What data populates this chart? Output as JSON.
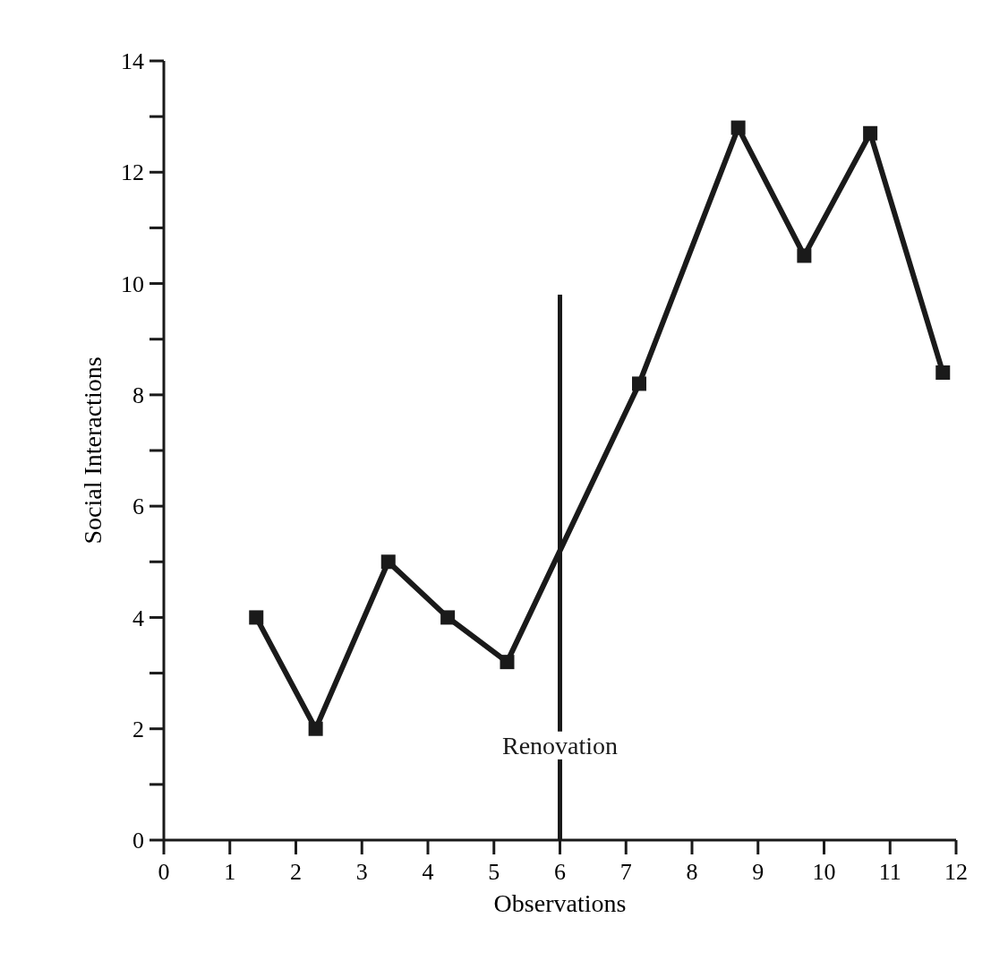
{
  "chart_data": {
    "type": "line",
    "xlabel": "Observations",
    "ylabel": "Social Interactions",
    "x": [
      1.4,
      2.3,
      3.4,
      4.3,
      5.2,
      7.2,
      8.7,
      9.7,
      10.7,
      11.8
    ],
    "series": [
      {
        "color": "#1a1a1a",
        "values": [
          4,
          2,
          5,
          4,
          3.2,
          8.2,
          12.8,
          10.5,
          12.7,
          8.4
        ]
      }
    ],
    "xlim": [
      0,
      12
    ],
    "xticks": [
      0,
      1,
      2,
      3,
      4,
      5,
      6,
      7,
      8,
      9,
      10,
      11,
      12
    ],
    "ylim": [
      0,
      14
    ],
    "yticks": [
      0,
      {
        "value": 1,
        "label": null
      },
      2,
      {
        "value": 3,
        "label": null
      },
      4,
      {
        "value": 5,
        "label": null
      },
      6,
      {
        "value": 7,
        "label": null
      },
      8,
      {
        "value": 9,
        "label": null
      },
      10,
      {
        "value": 11,
        "label": null
      },
      12,
      {
        "value": 13,
        "label": null
      },
      14
    ],
    "ref_lines": [
      {
        "axis": "x",
        "value": 6,
        "label": "Renovation",
        "color": "#1a1a1a"
      }
    ],
    "marker": "square",
    "line_style": "solid",
    "grid": false
  }
}
